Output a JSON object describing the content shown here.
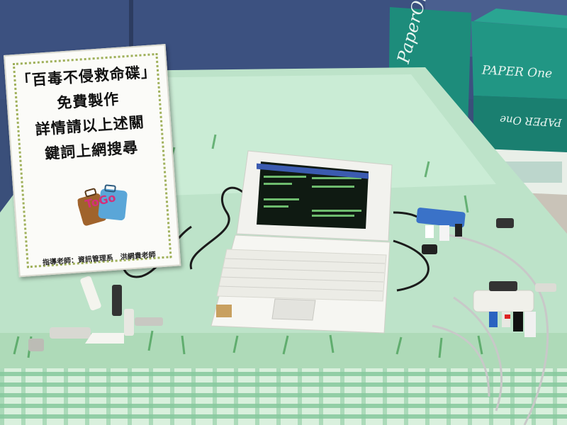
{
  "sign": {
    "lines": [
      "「百毒不侵救命碟」",
      "免費製作",
      "詳情請以上述關",
      "鍵詞上網搜尋"
    ],
    "logo_text": "ToGo",
    "footer": "指導老師：資訊管理系　洪網貴老師"
  },
  "boxes": {
    "label_top": "PAPER One",
    "label_lower": "PAPER One",
    "label_left": "PaperOne"
  },
  "colors": {
    "wall": "#3a4f7a",
    "tablecloth": "#bfe8cf",
    "checker": "#7fc89a",
    "box": "#1f8a7a",
    "laptop": "#f2f2ee",
    "screen": "#0f1a12"
  }
}
